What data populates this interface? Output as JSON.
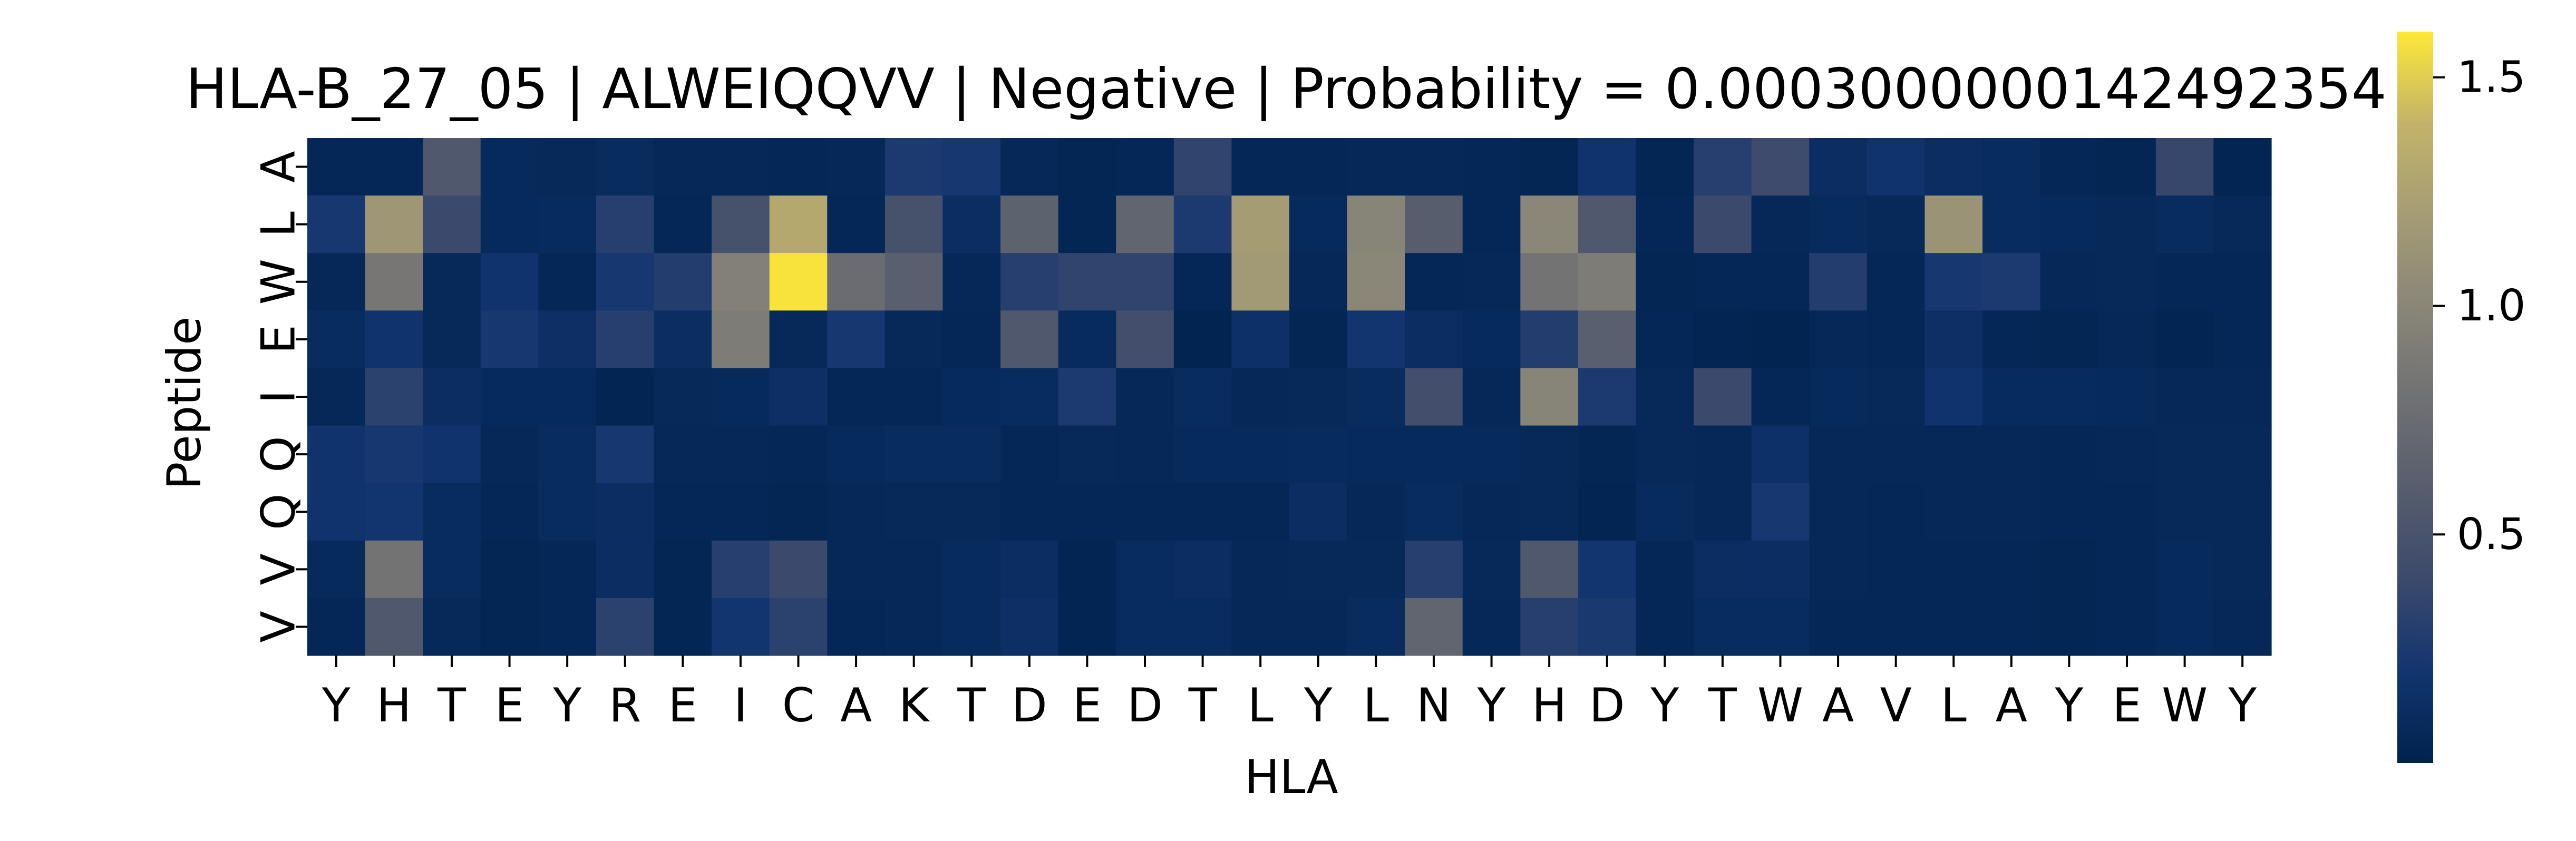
{
  "chart_data": {
    "type": "heatmap",
    "title": "HLA-B_27_05 | ALWEIQQVV | Negative | Probability = 0.0003000000142492354",
    "xlabel": "HLA",
    "ylabel": "Peptide",
    "x_categories": [
      "Y",
      "H",
      "T",
      "E",
      "Y",
      "R",
      "E",
      "I",
      "C",
      "A",
      "K",
      "T",
      "D",
      "E",
      "D",
      "T",
      "L",
      "Y",
      "L",
      "N",
      "Y",
      "H",
      "D",
      "Y",
      "T",
      "W",
      "A",
      "V",
      "L",
      "A",
      "Y",
      "E",
      "W",
      "Y"
    ],
    "y_categories": [
      "A",
      "L",
      "W",
      "E",
      "I",
      "Q",
      "Q",
      "V",
      "V"
    ],
    "values": [
      [
        0.05,
        0.05,
        0.55,
        0.08,
        0.07,
        0.1,
        0.06,
        0.06,
        0.05,
        0.06,
        0.25,
        0.22,
        0.06,
        0.04,
        0.05,
        0.35,
        0.05,
        0.05,
        0.06,
        0.06,
        0.05,
        0.04,
        0.18,
        0.04,
        0.3,
        0.42,
        0.12,
        0.18,
        0.12,
        0.1,
        0.05,
        0.04,
        0.38,
        0.03
      ],
      [
        0.22,
        1.15,
        0.4,
        0.08,
        0.09,
        0.3,
        0.05,
        0.48,
        1.3,
        0.05,
        0.48,
        0.12,
        0.65,
        0.04,
        0.68,
        0.25,
        1.2,
        0.08,
        0.98,
        0.6,
        0.05,
        1.0,
        0.55,
        0.05,
        0.4,
        0.06,
        0.09,
        0.07,
        1.12,
        0.1,
        0.08,
        0.07,
        0.1,
        0.07
      ],
      [
        0.06,
        0.85,
        0.07,
        0.18,
        0.05,
        0.22,
        0.28,
        0.95,
        1.58,
        0.75,
        0.62,
        0.06,
        0.3,
        0.35,
        0.35,
        0.05,
        1.18,
        0.06,
        1.0,
        0.05,
        0.06,
        0.82,
        0.9,
        0.04,
        0.05,
        0.05,
        0.28,
        0.05,
        0.22,
        0.25,
        0.06,
        0.07,
        0.05,
        0.05
      ],
      [
        0.1,
        0.18,
        0.07,
        0.22,
        0.14,
        0.3,
        0.12,
        0.9,
        0.07,
        0.22,
        0.07,
        0.05,
        0.55,
        0.09,
        0.45,
        0.02,
        0.15,
        0.04,
        0.2,
        0.12,
        0.08,
        0.28,
        0.62,
        0.05,
        0.03,
        0.02,
        0.06,
        0.05,
        0.14,
        0.05,
        0.04,
        0.06,
        0.03,
        0.05
      ],
      [
        0.06,
        0.32,
        0.12,
        0.08,
        0.08,
        0.03,
        0.07,
        0.08,
        0.14,
        0.05,
        0.05,
        0.08,
        0.1,
        0.25,
        0.06,
        0.1,
        0.06,
        0.07,
        0.1,
        0.45,
        0.06,
        0.98,
        0.25,
        0.07,
        0.4,
        0.05,
        0.08,
        0.07,
        0.18,
        0.09,
        0.09,
        0.08,
        0.06,
        0.06
      ],
      [
        0.18,
        0.22,
        0.18,
        0.06,
        0.1,
        0.22,
        0.06,
        0.06,
        0.05,
        0.08,
        0.1,
        0.1,
        0.05,
        0.07,
        0.06,
        0.08,
        0.08,
        0.09,
        0.08,
        0.08,
        0.08,
        0.07,
        0.04,
        0.07,
        0.06,
        0.15,
        0.06,
        0.06,
        0.06,
        0.06,
        0.05,
        0.06,
        0.07,
        0.07
      ],
      [
        0.18,
        0.2,
        0.1,
        0.05,
        0.1,
        0.12,
        0.05,
        0.05,
        0.04,
        0.06,
        0.07,
        0.07,
        0.05,
        0.05,
        0.05,
        0.05,
        0.05,
        0.12,
        0.06,
        0.1,
        0.06,
        0.07,
        0.03,
        0.09,
        0.06,
        0.22,
        0.06,
        0.05,
        0.06,
        0.06,
        0.05,
        0.05,
        0.07,
        0.07
      ],
      [
        0.08,
        0.82,
        0.1,
        0.04,
        0.05,
        0.12,
        0.04,
        0.3,
        0.4,
        0.06,
        0.06,
        0.09,
        0.12,
        0.03,
        0.1,
        0.12,
        0.06,
        0.07,
        0.07,
        0.3,
        0.07,
        0.55,
        0.2,
        0.05,
        0.12,
        0.12,
        0.06,
        0.05,
        0.05,
        0.05,
        0.04,
        0.05,
        0.08,
        0.07
      ],
      [
        0.05,
        0.55,
        0.07,
        0.04,
        0.05,
        0.32,
        0.04,
        0.2,
        0.32,
        0.05,
        0.06,
        0.09,
        0.14,
        0.03,
        0.1,
        0.1,
        0.06,
        0.06,
        0.1,
        0.68,
        0.06,
        0.3,
        0.24,
        0.05,
        0.1,
        0.1,
        0.05,
        0.05,
        0.05,
        0.05,
        0.04,
        0.05,
        0.08,
        0.06
      ]
    ],
    "vmin": 0.0,
    "vmax": 1.6,
    "colormap": "cividis",
    "colorbar_ticks": [
      0.5,
      1.0,
      1.5
    ],
    "colorbar_tick_labels": [
      "0.5",
      "1.0",
      "1.5"
    ]
  }
}
